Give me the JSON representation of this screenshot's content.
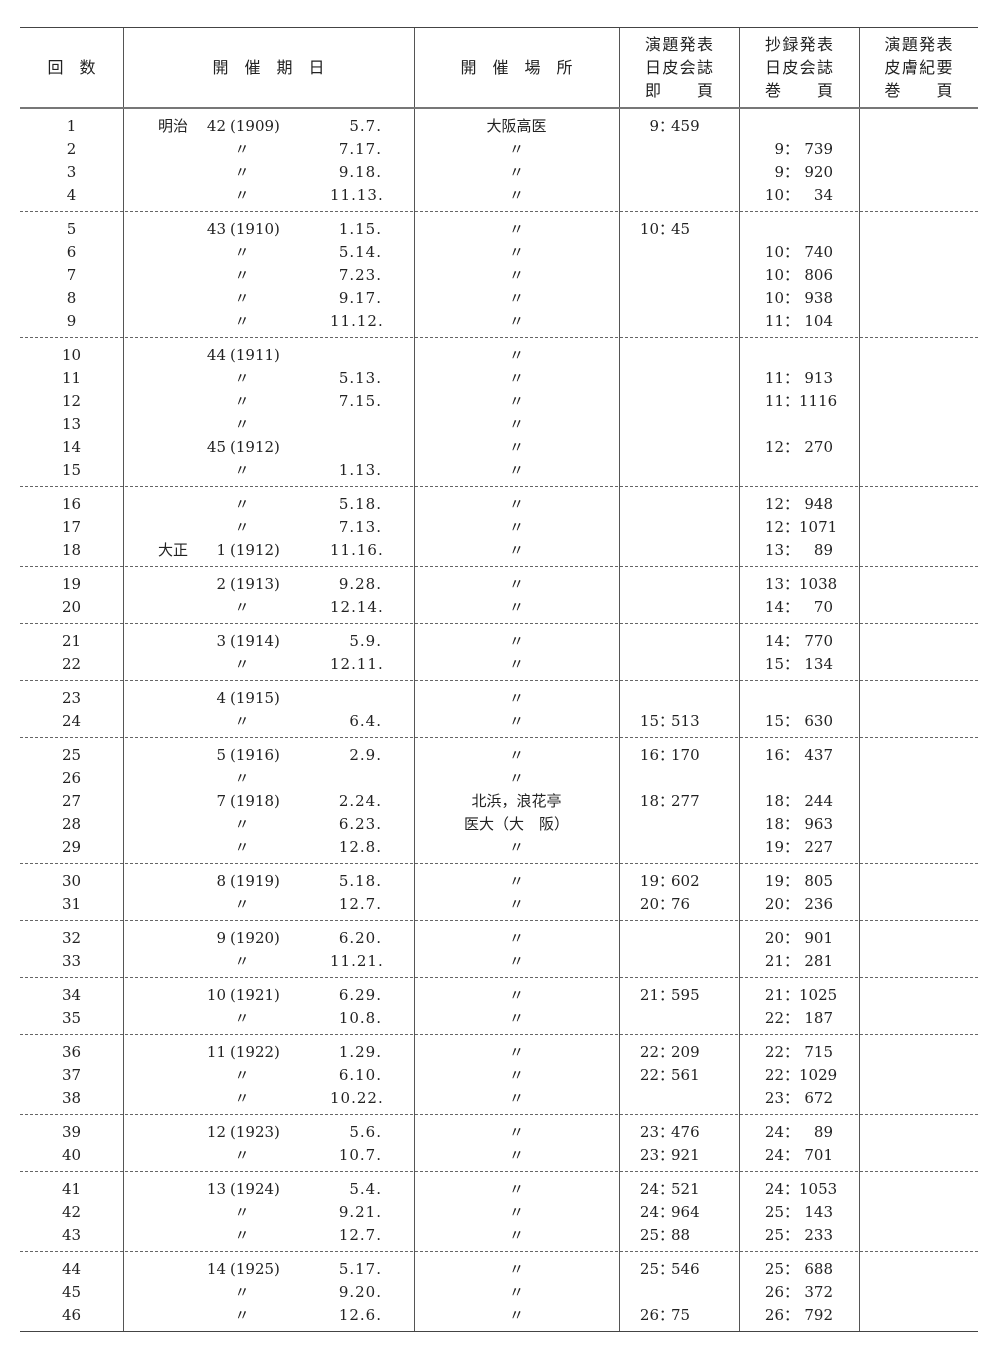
{
  "headers": {
    "count": "回　数",
    "date": "開　催　期　日",
    "place": "開　催　場　所",
    "col_a": [
      "演題発表",
      "日皮会誌",
      "即　　頁"
    ],
    "col_b": [
      "抄録発表",
      "日皮会誌",
      "巻　　頁"
    ],
    "col_c": [
      "演題発表",
      "皮膚紀要",
      "巻　　頁"
    ]
  },
  "sep": "：",
  "groups": [
    [
      {
        "n": "1",
        "era": "明治",
        "yr": "42",
        "wy": "(1909)",
        "dt": "5.7.",
        "place": "大阪高医",
        "a": [
          "9",
          "459"
        ]
      },
      {
        "n": "2",
        "yr": "〃",
        "dt": "7.17.",
        "place": "〃",
        "b": [
          "9",
          "739"
        ]
      },
      {
        "n": "3",
        "yr": "〃",
        "dt": "9.18.",
        "place": "〃",
        "b": [
          "9",
          "920"
        ]
      },
      {
        "n": "4",
        "yr": "〃",
        "dt": "11.13.",
        "place": "〃",
        "b": [
          "10",
          "34"
        ]
      }
    ],
    [
      {
        "n": "5",
        "yr": "43",
        "wy": "(1910)",
        "dt": "1.15.",
        "place": "〃",
        "a": [
          "10",
          "45"
        ]
      },
      {
        "n": "6",
        "yr": "〃",
        "dt": "5.14.",
        "place": "〃",
        "b": [
          "10",
          "740"
        ]
      },
      {
        "n": "7",
        "yr": "〃",
        "dt": "7.23.",
        "place": "〃",
        "b": [
          "10",
          "806"
        ]
      },
      {
        "n": "8",
        "yr": "〃",
        "dt": "9.17.",
        "place": "〃",
        "b": [
          "10",
          "938"
        ]
      },
      {
        "n": "9",
        "yr": "〃",
        "dt": "11.12.",
        "place": "〃",
        "b": [
          "11",
          "104"
        ]
      }
    ],
    [
      {
        "n": "10",
        "yr": "44",
        "wy": "(1911)",
        "place": "〃"
      },
      {
        "n": "11",
        "yr": "〃",
        "dt": "5.13.",
        "place": "〃",
        "b": [
          "11",
          "913"
        ]
      },
      {
        "n": "12",
        "yr": "〃",
        "dt": "7.15.",
        "place": "〃",
        "b": [
          "11",
          "1116"
        ]
      },
      {
        "n": "13",
        "yr": "〃",
        "place": "〃"
      },
      {
        "n": "14",
        "yr": "45",
        "wy": "(1912)",
        "place": "〃",
        "b": [
          "12",
          "270"
        ]
      },
      {
        "n": "15",
        "yr": "〃",
        "dt": "1.13.",
        "place": "〃"
      }
    ],
    [
      {
        "n": "16",
        "yr": "〃",
        "dt": "5.18.",
        "place": "〃",
        "b": [
          "12",
          "948"
        ]
      },
      {
        "n": "17",
        "yr": "〃",
        "dt": "7.13.",
        "place": "〃",
        "b": [
          "12",
          "1071"
        ]
      },
      {
        "n": "18",
        "era": "大正",
        "yr": "1",
        "wy": "(1912)",
        "dt": "11.16.",
        "place": "〃",
        "b": [
          "13",
          "89"
        ]
      }
    ],
    [
      {
        "n": "19",
        "yr": "2",
        "wy": "(1913)",
        "dt": "9.28.",
        "place": "〃",
        "b": [
          "13",
          "1038"
        ]
      },
      {
        "n": "20",
        "yr": "〃",
        "dt": "12.14.",
        "place": "〃",
        "b": [
          "14",
          "70"
        ]
      }
    ],
    [
      {
        "n": "21",
        "yr": "3",
        "wy": "(1914)",
        "dt": "5.9.",
        "place": "〃",
        "b": [
          "14",
          "770"
        ]
      },
      {
        "n": "22",
        "yr": "〃",
        "dt": "12.11.",
        "place": "〃",
        "b": [
          "15",
          "134"
        ]
      }
    ],
    [
      {
        "n": "23",
        "yr": "4",
        "wy": "(1915)",
        "place": "〃"
      },
      {
        "n": "24",
        "yr": "〃",
        "dt": "6.4.",
        "place": "〃",
        "a": [
          "15",
          "513"
        ],
        "b": [
          "15",
          "630"
        ]
      }
    ],
    [
      {
        "n": "25",
        "yr": "5",
        "wy": "(1916)",
        "dt": "2.9.",
        "place": "〃",
        "a": [
          "16",
          "170"
        ],
        "b": [
          "16",
          "437"
        ]
      },
      {
        "n": "26",
        "yr": "〃",
        "place": "〃"
      },
      {
        "n": "27",
        "yr": "7",
        "wy": "(1918)",
        "dt": "2.24.",
        "place": "北浜，浪花亭",
        "a": [
          "18",
          "277"
        ],
        "b": [
          "18",
          "244"
        ]
      },
      {
        "n": "28",
        "yr": "〃",
        "dt": "6.23.",
        "place": "医大（大　阪）",
        "b": [
          "18",
          "963"
        ]
      },
      {
        "n": "29",
        "yr": "〃",
        "dt": "12.8.",
        "place": "〃",
        "b": [
          "19",
          "227"
        ]
      }
    ],
    [
      {
        "n": "30",
        "yr": "8",
        "wy": "(1919)",
        "dt": "5.18.",
        "place": "〃",
        "a": [
          "19",
          "602"
        ],
        "b": [
          "19",
          "805"
        ]
      },
      {
        "n": "31",
        "yr": "〃",
        "dt": "12.7.",
        "place": "〃",
        "a": [
          "20",
          "76"
        ],
        "b": [
          "20",
          "236"
        ]
      }
    ],
    [
      {
        "n": "32",
        "yr": "9",
        "wy": "(1920)",
        "dt": "6.20.",
        "place": "〃",
        "b": [
          "20",
          "901"
        ]
      },
      {
        "n": "33",
        "yr": "〃",
        "dt": "11.21.",
        "place": "〃",
        "b": [
          "21",
          "281"
        ]
      }
    ],
    [
      {
        "n": "34",
        "yr": "10",
        "wy": "(1921)",
        "dt": "6.29.",
        "place": "〃",
        "a": [
          "21",
          "595"
        ],
        "b": [
          "21",
          "1025"
        ]
      },
      {
        "n": "35",
        "yr": "〃",
        "dt": "10.8.",
        "place": "〃",
        "b": [
          "22",
          "187"
        ]
      }
    ],
    [
      {
        "n": "36",
        "yr": "11",
        "wy": "(1922)",
        "dt": "1.29.",
        "place": "〃",
        "a": [
          "22",
          "209"
        ],
        "b": [
          "22",
          "715"
        ]
      },
      {
        "n": "37",
        "yr": "〃",
        "dt": "6.10.",
        "place": "〃",
        "a": [
          "22",
          "561"
        ],
        "b": [
          "22",
          "1029"
        ]
      },
      {
        "n": "38",
        "yr": "〃",
        "dt": "10.22.",
        "place": "〃",
        "b": [
          "23",
          "672"
        ]
      }
    ],
    [
      {
        "n": "39",
        "yr": "12",
        "wy": "(1923)",
        "dt": "5.6.",
        "place": "〃",
        "a": [
          "23",
          "476"
        ],
        "b": [
          "24",
          "89"
        ]
      },
      {
        "n": "40",
        "yr": "〃",
        "dt": "10.7.",
        "place": "〃",
        "a": [
          "23",
          "921"
        ],
        "b": [
          "24",
          "701"
        ]
      }
    ],
    [
      {
        "n": "41",
        "yr": "13",
        "wy": "(1924)",
        "dt": "5.4.",
        "place": "〃",
        "a": [
          "24",
          "521"
        ],
        "b": [
          "24",
          "1053"
        ]
      },
      {
        "n": "42",
        "yr": "〃",
        "dt": "9.21.",
        "place": "〃",
        "a": [
          "24",
          "964"
        ],
        "b": [
          "25",
          "143"
        ]
      },
      {
        "n": "43",
        "yr": "〃",
        "dt": "12.7.",
        "place": "〃",
        "a": [
          "25",
          "88"
        ],
        "b": [
          "25",
          "233"
        ]
      }
    ],
    [
      {
        "n": "44",
        "yr": "14",
        "wy": "(1925)",
        "dt": "5.17.",
        "place": "〃",
        "a": [
          "25",
          "546"
        ],
        "b": [
          "25",
          "688"
        ]
      },
      {
        "n": "45",
        "yr": "〃",
        "dt": "9.20.",
        "place": "〃",
        "b": [
          "26",
          "372"
        ]
      },
      {
        "n": "46",
        "yr": "〃",
        "dt": "12.6.",
        "place": "〃",
        "a": [
          "26",
          "75"
        ],
        "b": [
          "26",
          "792"
        ]
      }
    ]
  ]
}
